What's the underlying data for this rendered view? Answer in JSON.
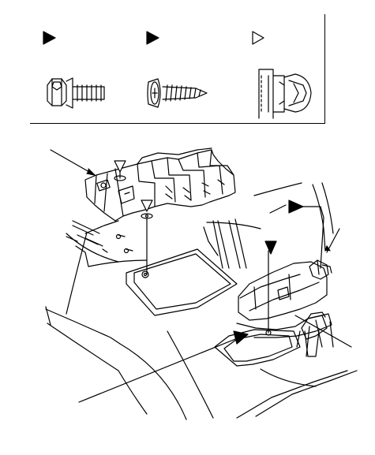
{
  "legend": {
    "items": [
      {
        "marker": "filled-triangle",
        "icon": "flange-bolt-icon"
      },
      {
        "marker": "filled-triangle",
        "icon": "tapping-screw-icon"
      },
      {
        "marker": "outline-triangle",
        "icon": "clip-fastener-icon"
      }
    ]
  },
  "colors": {
    "line": "#000000",
    "background": "#ffffff"
  }
}
